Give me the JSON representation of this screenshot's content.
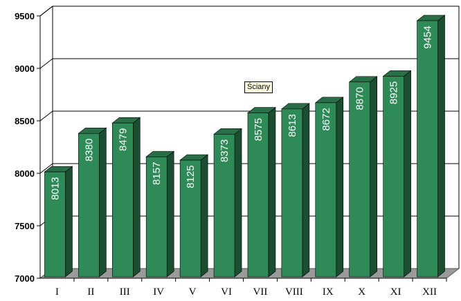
{
  "chart_data": {
    "type": "bar",
    "categories": [
      "I",
      "II",
      "III",
      "IV",
      "V",
      "VI",
      "VII",
      "VIII",
      "IX",
      "X",
      "XI",
      "XII"
    ],
    "values": [
      8013,
      8380,
      8479,
      8157,
      8125,
      8373,
      8575,
      8613,
      8672,
      8870,
      8925,
      9454
    ],
    "ylim": [
      7000,
      9500
    ],
    "yticks": [
      7000,
      7500,
      8000,
      8500,
      9000,
      9500
    ],
    "grid": true,
    "style": "3d-column",
    "colors": {
      "front": "#2e8b57",
      "top": "#2a6e47",
      "side": "#1b4d31",
      "floor": "#9a9a9a",
      "grid": "#000000"
    }
  },
  "tooltip": {
    "text": "Ściany"
  }
}
